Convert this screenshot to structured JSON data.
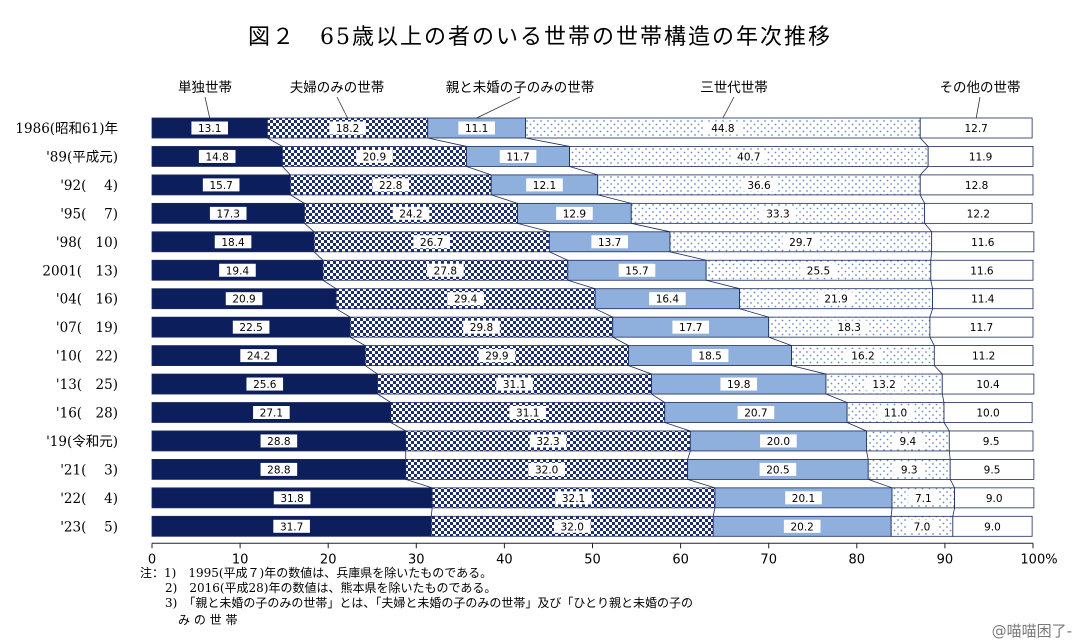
{
  "title": "図２　65歳以上の者のいる世帯の世帯構造の年次推移",
  "chart_data": {
    "type": "bar",
    "orientation": "horizontal",
    "stacked": "percent",
    "categories": [
      "1986(昭和61)年",
      "'89(平成元)",
      "'92(　 4)",
      "'95(　 7)",
      "'98(　10)",
      "2001(　13)",
      "'04(　16)",
      "'07(　19)",
      "'10(　22)",
      "'13(　25)",
      "'16(　28)",
      "'19(令和元)",
      "'21(　 3)",
      "'22(　 4)",
      "'23(　 5)"
    ],
    "series": [
      {
        "name": "単独世帯",
        "color": "#0d1e5c",
        "pattern": "solid",
        "values": [
          13.1,
          14.8,
          15.7,
          17.3,
          18.4,
          19.4,
          20.9,
          22.5,
          24.2,
          25.6,
          27.1,
          28.8,
          28.8,
          31.8,
          31.7
        ]
      },
      {
        "name": "夫婦のみの世帯",
        "color": "#1d2f6e",
        "pattern": "checker",
        "values": [
          18.2,
          20.9,
          22.8,
          24.2,
          26.7,
          27.8,
          29.4,
          29.8,
          29.9,
          31.1,
          31.1,
          32.3,
          32.0,
          32.1,
          32.0
        ]
      },
      {
        "name": "親と未婚の子のみの世帯",
        "color": "#8fb0dc",
        "pattern": "solid",
        "values": [
          11.1,
          11.7,
          12.1,
          12.9,
          13.7,
          15.7,
          16.4,
          17.7,
          18.5,
          19.8,
          20.7,
          20.0,
          20.5,
          20.1,
          20.2
        ]
      },
      {
        "name": "三世代世帯",
        "color": "#9fbbe0",
        "pattern": "dots",
        "values": [
          44.8,
          40.7,
          36.6,
          33.3,
          29.7,
          25.5,
          21.9,
          18.3,
          16.2,
          13.2,
          11.0,
          9.4,
          9.3,
          7.1,
          7.0
        ]
      },
      {
        "name": "その他の世帯",
        "color": "#ffffff",
        "pattern": "none",
        "values": [
          12.7,
          11.9,
          12.8,
          12.2,
          11.6,
          11.6,
          11.4,
          11.7,
          11.2,
          10.4,
          10.0,
          9.5,
          9.5,
          9.0,
          9.0
        ]
      }
    ],
    "value_labels": [
      [
        "13.1",
        "18.2",
        "11.1",
        "44.8",
        "12.7"
      ],
      [
        "14.8",
        "20.9",
        "11.7",
        "40.7",
        "11.9"
      ],
      [
        "15.7",
        "22.8",
        "12.1",
        "36.6",
        "12.8"
      ],
      [
        "17.3",
        "24.2",
        "12.9",
        "33.3",
        "12.2"
      ],
      [
        "18.4",
        "26.7",
        "13.7",
        "29.7",
        "11.6"
      ],
      [
        "19.4",
        "27.8",
        "15.7",
        "25.5",
        "11.6"
      ],
      [
        "20.9",
        "29.4",
        "16.4",
        "21.9",
        "11.4"
      ],
      [
        "22.5",
        "29.8",
        "17.7",
        "18.3",
        "11.7"
      ],
      [
        "24.2",
        "29.9",
        "18.5",
        "16.2",
        "11.2"
      ],
      [
        "25.6",
        "31.1",
        "19.8",
        "13.2",
        "10.4"
      ],
      [
        "27.1",
        "31.1",
        "20.7",
        "11.0",
        "10.0"
      ],
      [
        "28.8",
        "32.3",
        "20.0",
        "9.4",
        "9.5"
      ],
      [
        "28.8",
        "32.0",
        "20.5",
        "9.3",
        "9.5"
      ],
      [
        "31.8",
        "32.1",
        "20.1",
        "7.1",
        "9.0"
      ],
      [
        "31.7",
        "32.0",
        "20.2",
        "7.0",
        "9.0"
      ]
    ],
    "xlim": [
      0,
      100
    ],
    "xticks": [
      "0",
      "10",
      "20",
      "30",
      "40",
      "50",
      "60",
      "70",
      "80",
      "90",
      "100%"
    ],
    "grid": false,
    "legend": "top"
  },
  "notes": [
    "注：1)　1995(平成７)年の数値は、兵庫県を除いたものである。",
    "2)　2016(平成28)年の数値は、熊本県を除いたものである。",
    "3)　「親と未婚の子のみの世帯」とは、「夫婦と未婚の子のみの世帯」及び「ひとり親と未婚の子の",
    "み の 世 帯"
  ],
  "watermark": "@喵喵困了-"
}
